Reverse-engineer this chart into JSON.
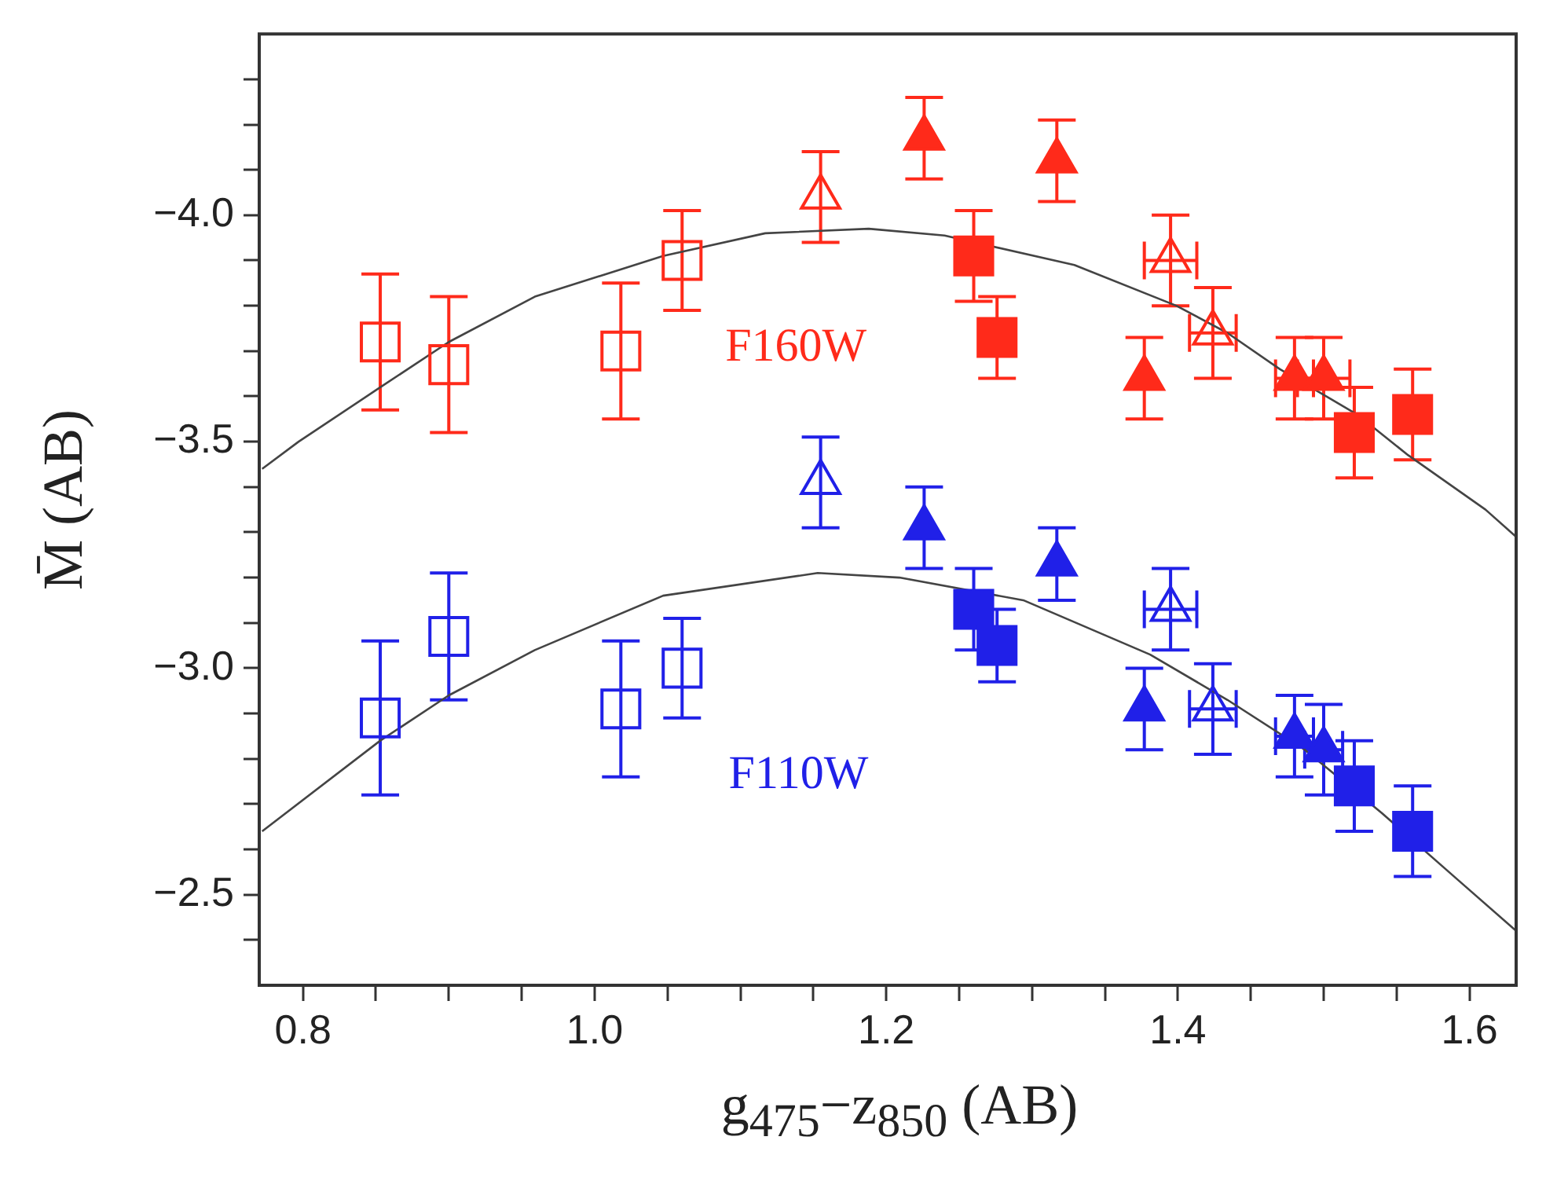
{
  "chart_data": {
    "type": "scatter",
    "xlabel": "g$_{475}$−z$_{850}$ (AB)",
    "ylabel": "M̄ (AB)",
    "xlim": [
      0.77,
      1.632
    ],
    "ylim": [
      -2.3,
      -4.4
    ],
    "xticks": [
      {
        "value": 0.8,
        "label": "0.8"
      },
      {
        "value": 0.85,
        "label": null
      },
      {
        "value": 0.9,
        "label": null
      },
      {
        "value": 0.95,
        "label": null
      },
      {
        "value": 1.0,
        "label": "1.0"
      },
      {
        "value": 1.05,
        "label": null
      },
      {
        "value": 1.1,
        "label": null
      },
      {
        "value": 1.15,
        "label": null
      },
      {
        "value": 1.2,
        "label": "1.2"
      },
      {
        "value": 1.25,
        "label": null
      },
      {
        "value": 1.3,
        "label": null
      },
      {
        "value": 1.35,
        "label": null
      },
      {
        "value": 1.4,
        "label": "1.4"
      },
      {
        "value": 1.45,
        "label": null
      },
      {
        "value": 1.5,
        "label": null
      },
      {
        "value": 1.55,
        "label": null
      },
      {
        "value": 1.6,
        "label": "1.6"
      }
    ],
    "yticks": [
      {
        "value": -4.3,
        "label": null
      },
      {
        "value": -4.2,
        "label": null
      },
      {
        "value": -4.1,
        "label": null
      },
      {
        "value": -4.0,
        "label": "−4.0"
      },
      {
        "value": -3.9,
        "label": null
      },
      {
        "value": -3.8,
        "label": null
      },
      {
        "value": -3.7,
        "label": null
      },
      {
        "value": -3.6,
        "label": null
      },
      {
        "value": -3.5,
        "label": "−3.5"
      },
      {
        "value": -3.4,
        "label": null
      },
      {
        "value": -3.3,
        "label": null
      },
      {
        "value": -3.2,
        "label": null
      },
      {
        "value": -3.1,
        "label": null
      },
      {
        "value": -3.0,
        "label": "−3.0"
      },
      {
        "value": -2.9,
        "label": null
      },
      {
        "value": -2.8,
        "label": null
      },
      {
        "value": -2.7,
        "label": null
      },
      {
        "value": -2.6,
        "label": null
      },
      {
        "value": -2.5,
        "label": "−2.5"
      },
      {
        "value": -2.4,
        "label": null
      }
    ],
    "grid": false,
    "annotations": [
      "F160W",
      "F110W"
    ],
    "series": [
      {
        "marker": "square",
        "color": "#ff2a1a",
        "x": [
          0.853,
          0.9,
          1.018,
          1.06
        ],
        "values": [
          -3.72,
          -3.67,
          -3.7,
          -3.9
        ],
        "errors": [
          0.15,
          0.15,
          0.15,
          0.11
        ]
      },
      {
        "marker": "triangle",
        "color": "#ff2a1a",
        "x": [
          1.155,
          1.395,
          1.424
        ],
        "values": [
          -4.04,
          -3.9,
          -3.74
        ],
        "errors": [
          0.1,
          0.1,
          0.1
        ],
        "xerrors": [
          null,
          0.018,
          0.016
        ]
      },
      {
        "marker": "triangle",
        "color": "#ff2a1a",
        "x": [
          1.226,
          1.317,
          1.377,
          1.48,
          1.5
        ],
        "values": [
          -4.17,
          -4.12,
          -3.64,
          -3.64,
          -3.64
        ],
        "errors": [
          0.09,
          0.09,
          0.09,
          0.09,
          0.09
        ],
        "xerrors": [
          null,
          null,
          null,
          0.013,
          0.018
        ]
      },
      {
        "marker": "square",
        "color": "#ff2a1a",
        "x": [
          1.26,
          1.276,
          1.521,
          1.561
        ],
        "values": [
          -3.91,
          -3.73,
          -3.52,
          -3.56
        ],
        "errors": [
          0.1,
          0.09,
          0.1,
          0.1
        ]
      },
      {
        "marker": "square",
        "color": "#2020e8",
        "x": [
          0.853,
          0.9,
          1.018,
          1.06
        ],
        "values": [
          -2.89,
          -3.07,
          -2.91,
          -3.0
        ],
        "errors": [
          0.17,
          0.14,
          0.15,
          0.11
        ]
      },
      {
        "marker": "triangle",
        "color": "#2020e8",
        "x": [
          1.155,
          1.395,
          1.424
        ],
        "values": [
          -3.41,
          -3.13,
          -2.91
        ],
        "errors": [
          0.1,
          0.09,
          0.1
        ],
        "xerrors": [
          null,
          0.018,
          0.016
        ]
      },
      {
        "marker": "triangle",
        "color": "#2020e8",
        "x": [
          1.226,
          1.317,
          1.377,
          1.48,
          1.5
        ],
        "values": [
          -3.31,
          -3.23,
          -2.91,
          -2.85,
          -2.82
        ],
        "errors": [
          0.09,
          0.08,
          0.09,
          0.09,
          0.1
        ],
        "xerrors": [
          null,
          null,
          null,
          0.013,
          0.013
        ]
      },
      {
        "marker": "square",
        "color": "#2020e8",
        "x": [
          1.26,
          1.276,
          1.521,
          1.561
        ],
        "values": [
          -3.13,
          -3.05,
          -2.74,
          -2.64
        ],
        "errors": [
          0.09,
          0.08,
          0.1,
          0.1
        ]
      },
      {
        "type": "line",
        "marker": "none",
        "line_style": "solid",
        "color": "#444444",
        "x": [
          0.772,
          0.797,
          0.853,
          0.9,
          0.959,
          1.047,
          1.117,
          1.188,
          1.24,
          1.329,
          1.399,
          1.434,
          1.47,
          1.523,
          1.558,
          1.611,
          1.632
        ],
        "values": [
          -3.44,
          -3.5,
          -3.62,
          -3.72,
          -3.82,
          -3.91,
          -3.96,
          -3.97,
          -3.955,
          -3.89,
          -3.8,
          -3.74,
          -3.66,
          -3.56,
          -3.47,
          -3.35,
          -3.29
        ]
      },
      {
        "type": "line",
        "marker": "none",
        "line_style": "solid",
        "color": "#444444",
        "x": [
          0.772,
          0.853,
          0.9,
          0.959,
          1.047,
          1.153,
          1.209,
          1.294,
          1.381,
          1.434,
          1.487,
          1.54,
          1.593,
          1.632
        ],
        "values": [
          -2.64,
          -2.84,
          -2.94,
          -3.04,
          -3.16,
          -3.21,
          -3.2,
          -3.15,
          -3.03,
          -2.93,
          -2.82,
          -2.68,
          -2.53,
          -2.42
        ]
      }
    ]
  }
}
